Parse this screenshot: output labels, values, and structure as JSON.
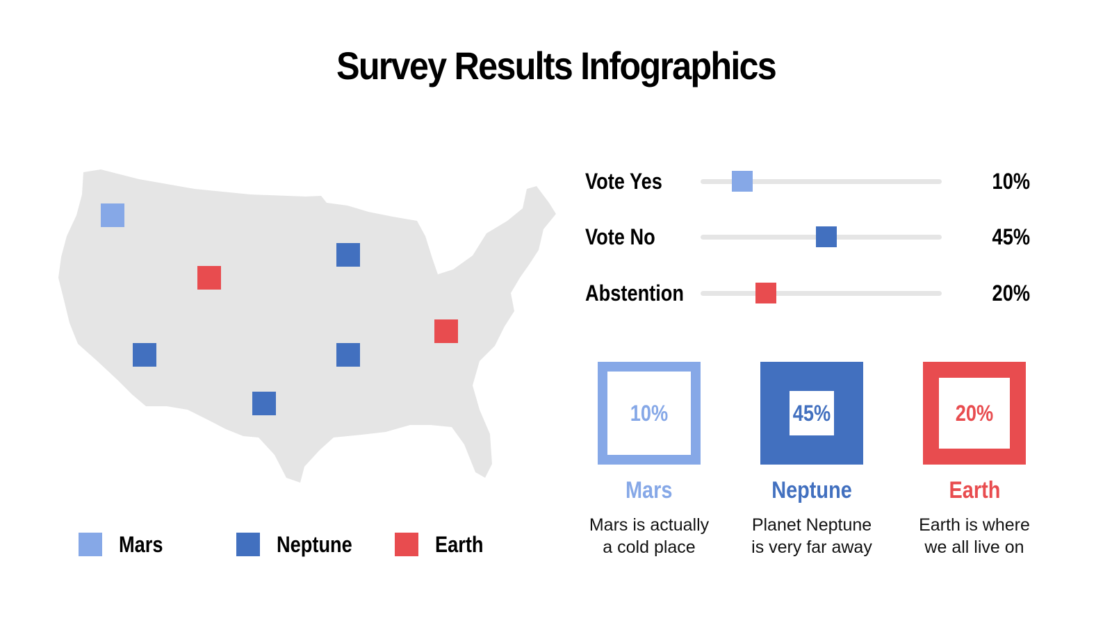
{
  "title": "Survey Results Infographics",
  "colors": {
    "mars": "#86a8e7",
    "neptune": "#4270bf",
    "earth": "#e84c4f",
    "map": "#e5e5e5",
    "track": "#e5e5e5"
  },
  "map_markers": [
    {
      "planet": "mars"
    },
    {
      "planet": "earth"
    },
    {
      "planet": "neptune"
    },
    {
      "planet": "neptune"
    },
    {
      "planet": "neptune"
    },
    {
      "planet": "neptune"
    },
    {
      "planet": "earth"
    }
  ],
  "legend": [
    {
      "label": "Mars",
      "color": "#86a8e7"
    },
    {
      "label": "Neptune",
      "color": "#4270bf"
    },
    {
      "label": "Earth",
      "color": "#e84c4f"
    }
  ],
  "sliders": [
    {
      "label": "Vote Yes",
      "value": "10%",
      "percent": 10,
      "color": "#86a8e7"
    },
    {
      "label": "Vote No",
      "value": "45%",
      "percent": 45,
      "color": "#4270bf"
    },
    {
      "label": "Abstention",
      "value": "20%",
      "percent": 20,
      "color": "#e84c4f"
    }
  ],
  "cards": [
    {
      "value": "10%",
      "title": "Mars",
      "desc1": "Mars is actually",
      "desc2": "a cold place",
      "color": "#86a8e7"
    },
    {
      "value": "45%",
      "title": "Neptune",
      "desc1": "Planet Neptune",
      "desc2": "is very far away",
      "color": "#4270bf"
    },
    {
      "value": "20%",
      "title": "Earth",
      "desc1": "Earth is where",
      "desc2": "we all live on",
      "color": "#e84c4f"
    }
  ]
}
